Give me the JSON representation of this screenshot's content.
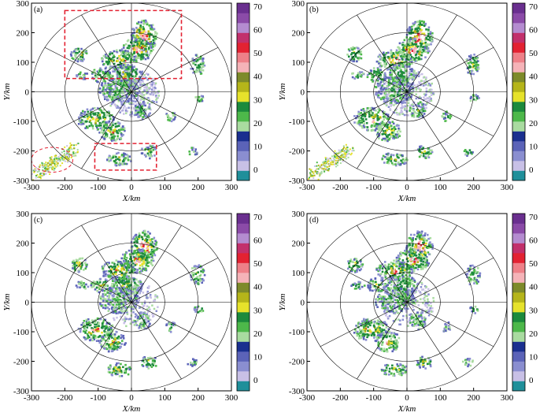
{
  "chart_data": [
    {
      "type": "heatmap",
      "panel_label": "(a)",
      "xlabel": "X/km",
      "ylabel": "Y/km",
      "xlim": [
        -300,
        300
      ],
      "ylim": [
        -300,
        300
      ],
      "x_ticks": [
        "-300",
        "-200",
        "-100",
        "0",
        "100",
        "200",
        "300"
      ],
      "y_ticks": [
        "300",
        "200",
        "100",
        "0",
        "-100",
        "-200",
        "-300"
      ],
      "range_rings_km": [
        100,
        200,
        300
      ],
      "radial_spacing_deg": 30,
      "colorbar": {
        "ticks": [
          "70",
          "60",
          "50",
          "40",
          "30",
          "20",
          "10",
          "0"
        ]
      },
      "annotations": [
        {
          "shape": "dashed-rectangle",
          "x": [
            -200,
            150
          ],
          "y": [
            45,
            275
          ]
        },
        {
          "shape": "dashed-rectangle",
          "x": [
            -110,
            75
          ],
          "y": [
            -265,
            -175
          ]
        },
        {
          "shape": "dashed-ellipse",
          "center": [
            -238,
            -230
          ],
          "radius": [
            62,
            42
          ]
        }
      ]
    },
    {
      "type": "heatmap",
      "panel_label": "(b)",
      "xlabel": "X/km",
      "ylabel": "Y/km",
      "xlim": [
        -300,
        300
      ],
      "ylim": [
        -300,
        300
      ],
      "x_ticks": [
        "-300",
        "-200",
        "-100",
        "0",
        "100",
        "200",
        "300"
      ],
      "y_ticks": [
        "300",
        "200",
        "100",
        "0",
        "-100",
        "-200",
        "-300"
      ],
      "range_rings_km": [
        100,
        200,
        300
      ],
      "radial_spacing_deg": 30,
      "colorbar": {
        "ticks": [
          "70",
          "60",
          "50",
          "40",
          "30",
          "20",
          "10",
          "0"
        ]
      }
    },
    {
      "type": "heatmap",
      "panel_label": "(c)",
      "xlabel": "X/km",
      "ylabel": "Y/km",
      "xlim": [
        -300,
        300
      ],
      "ylim": [
        -300,
        300
      ],
      "x_ticks": [
        "-300",
        "-200",
        "-100",
        "0",
        "100",
        "200",
        "300"
      ],
      "y_ticks": [
        "300",
        "200",
        "100",
        "0",
        "-100",
        "-200",
        "-300"
      ],
      "range_rings_km": [
        100,
        200,
        300
      ],
      "radial_spacing_deg": 30,
      "colorbar": {
        "ticks": [
          "70",
          "60",
          "50",
          "40",
          "30",
          "20",
          "10",
          "0"
        ]
      }
    },
    {
      "type": "heatmap",
      "panel_label": "(d)",
      "xlabel": "X/km",
      "ylabel": "Y/km",
      "xlim": [
        -300,
        300
      ],
      "ylim": [
        -300,
        300
      ],
      "x_ticks": [
        "-300",
        "-200",
        "-100",
        "0",
        "100",
        "200",
        "300"
      ],
      "y_ticks": [
        "300",
        "200",
        "100",
        "0",
        "-100",
        "-200",
        "-300"
      ],
      "range_rings_km": [
        100,
        200,
        300
      ],
      "radial_spacing_deg": 30,
      "colorbar": {
        "ticks": [
          "70",
          "60",
          "50",
          "40",
          "30",
          "20",
          "10",
          "0"
        ]
      }
    }
  ],
  "colorbar_colors": [
    "#1f8f9a",
    "#c8c0e6",
    "#8a8ed0",
    "#5b63b8",
    "#1a2f8f",
    "#a9dba0",
    "#4db84a",
    "#1c8a3c",
    "#e6e22b",
    "#b5b51a",
    "#7d8a2a",
    "#f5b3b8",
    "#ee8088",
    "#e32232",
    "#c2306c",
    "#b48cd0",
    "#8b4ba8",
    "#6a2f8f"
  ],
  "clutter_colors": {
    "weak": "#c8c0e6",
    "weak2": "#8a8ed0",
    "mid": "#5b63b8",
    "low": "#a9dba0",
    "green": "#4db84a",
    "dgreen": "#1c8a3c",
    "yellow": "#e6e22b",
    "olive": "#b5b51a",
    "pink": "#f5b3b8",
    "red": "#e32232",
    "blue": "#1a2f8f"
  }
}
